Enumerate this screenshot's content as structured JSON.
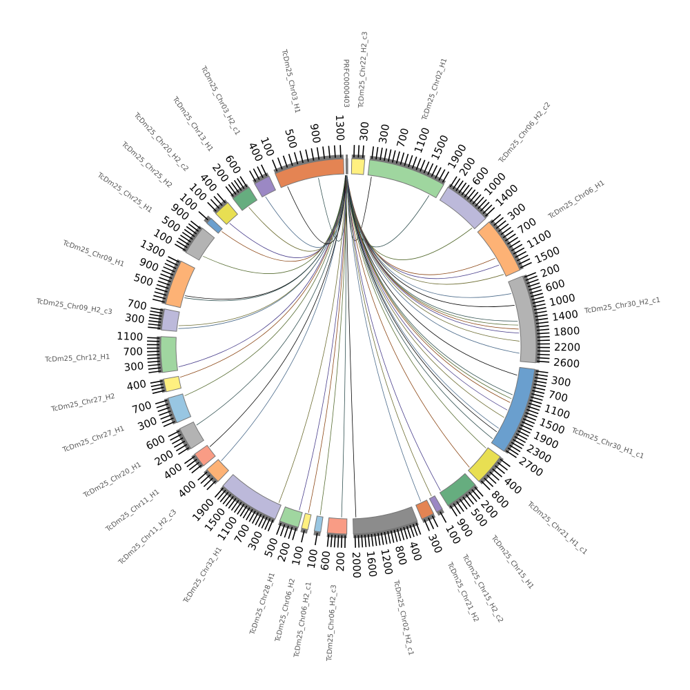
{
  "title": "",
  "tick_step": 100,
  "segments": [
    {
      "name": "PRFC0000403",
      "color": "#7a7a7a",
      "ticks_max": 0
    },
    {
      "name": "TcDm25_Chr22_H2_c3",
      "color": "#fff080",
      "ticks_max": 300
    },
    {
      "name": "TcDm25_Chr02_H1",
      "color": "#9fd69f",
      "ticks_max": 1900
    },
    {
      "name": "TcDm25_Chr06_H2_c2",
      "color": "#bcb9da",
      "ticks_max": 1400
    },
    {
      "name": "TcDm25_Chr06_H1",
      "color": "#fdb275",
      "ticks_max": 1500
    },
    {
      "name": "TcDm25_Chr30_H2_c1",
      "color": "#b3b3b3",
      "ticks_max": 2600
    },
    {
      "name": "TcDm25_Chr30_H1_c1",
      "color": "#6a9fce",
      "ticks_max": 2700
    },
    {
      "name": "TcDm25_Chr21_H1_c1",
      "color": "#e8df52",
      "ticks_max": 800
    },
    {
      "name": "TcDm25_Chr15_H1",
      "color": "#66ad7f",
      "ticks_max": 900
    },
    {
      "name": "TcDm25_Chr15_H2_c2",
      "color": "#9b88c4",
      "ticks_max": 100
    },
    {
      "name": "TcDm25_Chr21_H2",
      "color": "#e48453",
      "ticks_max": 300
    },
    {
      "name": "TcDm25_Chr02_H2_c1",
      "color": "#8c8c8c",
      "ticks_max": 2000
    },
    {
      "name": "TcDm25_Chr06_H2_c3",
      "color": "#f99c85",
      "ticks_max": 600
    },
    {
      "name": "TcDm25_Chr06_H2_c1",
      "color": "#98c6e2",
      "ticks_max": 100
    },
    {
      "name": "TcDm25_Chr06_H2",
      "color": "#fff080",
      "ticks_max": 100
    },
    {
      "name": "TcDm25_Chr28_H1",
      "color": "#a0d6a0",
      "ticks_max": 500
    },
    {
      "name": "TcDm25_Chr32_H1",
      "color": "#bcb9da",
      "ticks_max": 1900
    },
    {
      "name": "TcDm25_Chr11_H2_c3",
      "color": "#fdb275",
      "ticks_max": 400
    },
    {
      "name": "TcDm25_Chr11_H1",
      "color": "#f99c85",
      "ticks_max": 400
    },
    {
      "name": "TcDm25_Chr20_H1",
      "color": "#b3b3b3",
      "ticks_max": 600
    },
    {
      "name": "TcDm25_Chr27_H1",
      "color": "#98c6e2",
      "ticks_max": 700
    },
    {
      "name": "TcDm25_Chr27_H2",
      "color": "#fff080",
      "ticks_max": 400
    },
    {
      "name": "TcDm25_Chr12_H1",
      "color": "#a0d6a0",
      "ticks_max": 1100
    },
    {
      "name": "TcDm25_Chr09_H2_c3",
      "color": "#bcb9da",
      "ticks_max": 700
    },
    {
      "name": "TcDm25_Chr09_H1",
      "color": "#fdb275",
      "ticks_max": 1300
    },
    {
      "name": "TcDm25_Chr25_H1",
      "color": "#b3b3b3",
      "ticks_max": 900
    },
    {
      "name": "TcDm25_Chr25_H2",
      "color": "#6a9fce",
      "ticks_max": 100
    },
    {
      "name": "TcDm25_Chr20_H2_c2",
      "color": "#e8df52",
      "ticks_max": 400
    },
    {
      "name": "TcDm25_Chr13_H1",
      "color": "#66ad7f",
      "ticks_max": 600
    },
    {
      "name": "TcDm25_Chr03_H2_c1",
      "color": "#9b88c4",
      "ticks_max": 400
    },
    {
      "name": "TcDm25_Chr03_H1",
      "color": "#e48453",
      "ticks_max": 1300
    }
  ],
  "links": [
    {
      "to": 2,
      "pos": 0.05
    },
    {
      "to": 2,
      "pos": 0.9
    },
    {
      "to": 3,
      "pos": 0.95
    },
    {
      "to": 4,
      "pos": 0.6
    },
    {
      "to": 4,
      "pos": 0.75
    },
    {
      "to": 4,
      "pos": 0.95
    },
    {
      "to": 5,
      "pos": 0.15
    },
    {
      "to": 5,
      "pos": 0.3
    },
    {
      "to": 5,
      "pos": 0.5
    },
    {
      "to": 5,
      "pos": 0.55
    },
    {
      "to": 5,
      "pos": 0.6
    },
    {
      "to": 5,
      "pos": 0.65
    },
    {
      "to": 5,
      "pos": 0.75
    },
    {
      "to": 5,
      "pos": 0.9
    },
    {
      "to": 6,
      "pos": 0.1
    },
    {
      "to": 6,
      "pos": 0.35
    },
    {
      "to": 6,
      "pos": 0.4
    },
    {
      "to": 6,
      "pos": 0.45
    },
    {
      "to": 6,
      "pos": 0.55
    },
    {
      "to": 6,
      "pos": 0.65
    },
    {
      "to": 6,
      "pos": 0.8
    },
    {
      "to": 6,
      "pos": 0.85
    },
    {
      "to": 6,
      "pos": 0.95
    },
    {
      "to": 7,
      "pos": 0.05
    },
    {
      "to": 7,
      "pos": 0.9
    },
    {
      "to": 8,
      "pos": 0.95
    },
    {
      "to": 9,
      "pos": 0.5
    },
    {
      "to": 10,
      "pos": 0.5
    },
    {
      "to": 11,
      "pos": 0.95
    },
    {
      "to": 12,
      "pos": 0.3
    },
    {
      "to": 13,
      "pos": 0.5
    },
    {
      "to": 14,
      "pos": 0.5
    },
    {
      "to": 15,
      "pos": 0.2
    },
    {
      "to": 16,
      "pos": 0.05
    },
    {
      "to": 17,
      "pos": 0.8
    },
    {
      "to": 18,
      "pos": 0.8
    },
    {
      "to": 19,
      "pos": 0.8
    },
    {
      "to": 20,
      "pos": 0.9
    },
    {
      "to": 21,
      "pos": 0.9
    },
    {
      "to": 22,
      "pos": 0.1
    },
    {
      "to": 23,
      "pos": 0.3
    },
    {
      "to": 23,
      "pos": 0.15
    },
    {
      "to": 24,
      "pos": 0.3
    },
    {
      "to": 24,
      "pos": 0.25
    },
    {
      "to": 25,
      "pos": 0.2
    },
    {
      "to": 26,
      "pos": 0.6
    },
    {
      "to": 27,
      "pos": 0.2
    },
    {
      "to": 28,
      "pos": 0.4
    },
    {
      "to": 29,
      "pos": 0.2
    },
    {
      "to": 30,
      "pos": 0.1
    },
    {
      "to": 30,
      "pos": 0.6
    }
  ],
  "link_colors": [
    "#000000",
    "#2f4f4f",
    "#556b2f",
    "#8b4513",
    "#483d8b",
    "#6b6b2f",
    "#4a6a8a"
  ]
}
